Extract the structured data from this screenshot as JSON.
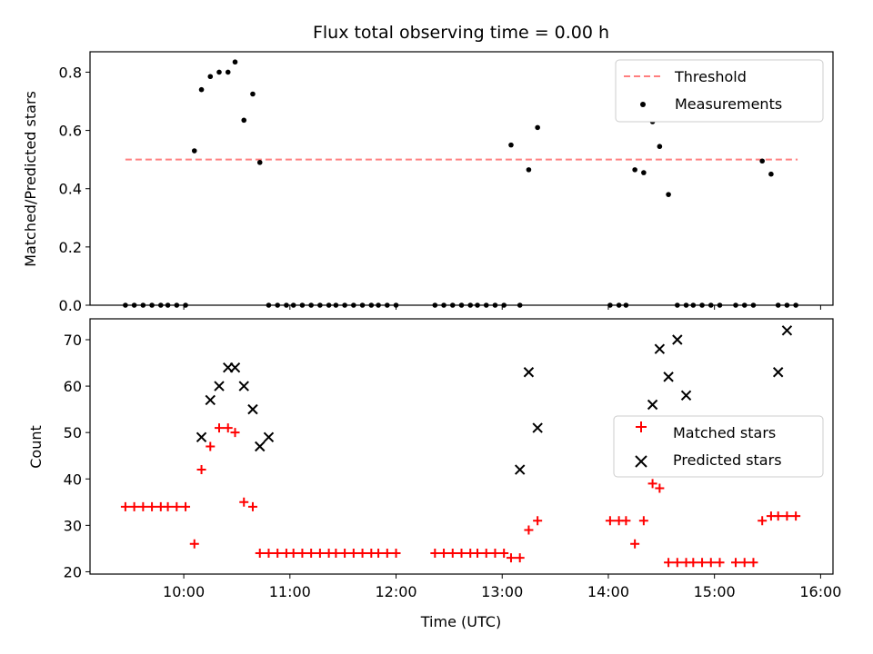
{
  "chart_data": [
    {
      "type": "scatter",
      "title": "Flux total observing time = 0.00 h",
      "xlabel": "",
      "ylabel": "Matched/Predicted stars",
      "ylim": [
        0,
        0.87
      ],
      "yticks": [
        "0.0",
        "0.2",
        "0.4",
        "0.6",
        "0.8"
      ],
      "ytick_values": [
        0,
        0.2,
        0.4,
        0.6,
        0.8
      ],
      "legend_position": "top-right",
      "threshold": {
        "name": "Threshold",
        "value": 0.5,
        "x_start": "09:27",
        "x_end": "15:47",
        "color": "#ff7f7f"
      },
      "series": [
        {
          "name": "Measurements",
          "color": "#000000",
          "x": [
            "09:27",
            "09:32",
            "09:37",
            "09:42",
            "09:47",
            "09:51",
            "09:56",
            "10:01",
            "10:06",
            "10:10",
            "10:15",
            "10:20",
            "10:25",
            "10:29",
            "10:34",
            "10:39",
            "10:43",
            "10:48",
            "10:53",
            "10:58",
            "11:02",
            "11:07",
            "11:12",
            "11:17",
            "11:22",
            "11:26",
            "11:31",
            "11:36",
            "11:41",
            "11:46",
            "11:50",
            "11:55",
            "12:00",
            "12:22",
            "12:27",
            "12:32",
            "12:37",
            "12:42",
            "12:46",
            "12:51",
            "12:56",
            "13:01",
            "13:05",
            "13:10",
            "13:15",
            "13:20",
            "14:01",
            "14:06",
            "14:10",
            "14:15",
            "14:20",
            "14:25",
            "14:29",
            "14:34",
            "14:39",
            "14:44",
            "14:48",
            "14:53",
            "14:58",
            "15:03",
            "15:12",
            "15:17",
            "15:22",
            "15:27",
            "15:32",
            "15:36",
            "15:41",
            "15:46"
          ],
          "y": [
            0,
            0,
            0,
            0,
            0,
            0,
            0,
            0,
            0.53,
            0.74,
            0.785,
            0.8,
            0.8,
            0.835,
            0.635,
            0.725,
            0.49,
            0,
            0,
            0,
            0,
            0,
            0,
            0,
            0,
            0,
            0,
            0,
            0,
            0,
            0,
            0,
            0,
            0,
            0,
            0,
            0,
            0,
            0,
            0,
            0,
            0,
            0.55,
            0,
            0.465,
            0.61,
            0,
            0,
            0,
            0.465,
            0.455,
            0.63,
            0.545,
            0.38,
            0,
            0,
            0,
            0,
            0,
            0,
            0,
            0,
            0,
            0.495,
            0.45,
            0,
            0,
            0
          ]
        }
      ]
    },
    {
      "type": "scatter",
      "title": "",
      "xlabel": "Time (UTC)",
      "ylabel": "Count",
      "ylim": [
        19.5,
        74.5
      ],
      "yticks": [
        "20",
        "30",
        "40",
        "50",
        "60",
        "70"
      ],
      "ytick_values": [
        20,
        30,
        40,
        50,
        60,
        70
      ],
      "xlim": [
        "09:07",
        "16:07"
      ],
      "xticks": [
        "10:00",
        "11:00",
        "12:00",
        "13:00",
        "14:00",
        "15:00",
        "16:00"
      ],
      "legend_position": "center-right",
      "series": [
        {
          "name": "Matched stars",
          "marker": "+",
          "color": "#ff0000",
          "x": [
            "09:27",
            "09:32",
            "09:37",
            "09:42",
            "09:47",
            "09:51",
            "09:56",
            "10:01",
            "10:06",
            "10:10",
            "10:15",
            "10:20",
            "10:25",
            "10:29",
            "10:34",
            "10:39",
            "10:43",
            "10:48",
            "10:53",
            "10:58",
            "11:02",
            "11:07",
            "11:12",
            "11:17",
            "11:22",
            "11:26",
            "11:31",
            "11:36",
            "11:41",
            "11:46",
            "11:50",
            "11:55",
            "12:00",
            "12:22",
            "12:27",
            "12:32",
            "12:37",
            "12:42",
            "12:46",
            "12:51",
            "12:56",
            "13:01",
            "13:05",
            "13:10",
            "13:15",
            "13:20",
            "14:01",
            "14:06",
            "14:10",
            "14:15",
            "14:20",
            "14:25",
            "14:29",
            "14:34",
            "14:39",
            "14:44",
            "14:48",
            "14:53",
            "14:58",
            "15:03",
            "15:12",
            "15:17",
            "15:22",
            "15:27",
            "15:32",
            "15:36",
            "15:41",
            "15:46"
          ],
          "y": [
            34,
            34,
            34,
            34,
            34,
            34,
            34,
            34,
            26,
            42,
            47,
            51,
            51,
            50,
            35,
            34,
            24,
            24,
            24,
            24,
            24,
            24,
            24,
            24,
            24,
            24,
            24,
            24,
            24,
            24,
            24,
            24,
            24,
            24,
            24,
            24,
            24,
            24,
            24,
            24,
            24,
            24,
            23,
            23,
            29,
            31,
            31,
            31,
            31,
            26,
            31,
            39,
            38,
            22,
            22,
            22,
            22,
            22,
            22,
            22,
            22,
            22,
            22,
            31,
            32,
            32,
            32,
            32
          ]
        },
        {
          "name": "Predicted stars",
          "marker": "x",
          "color": "#000000",
          "x": [
            "10:10",
            "10:15",
            "10:20",
            "10:25",
            "10:29",
            "10:34",
            "10:39",
            "10:43",
            "10:48",
            "13:10",
            "13:15",
            "13:20",
            "14:25",
            "14:29",
            "14:34",
            "14:39",
            "14:44",
            "15:36",
            "15:41"
          ],
          "y": [
            49,
            57,
            60,
            64,
            64,
            60,
            55,
            47,
            49,
            42,
            63,
            51,
            56,
            68,
            62,
            70,
            58,
            63,
            72
          ]
        }
      ]
    }
  ]
}
